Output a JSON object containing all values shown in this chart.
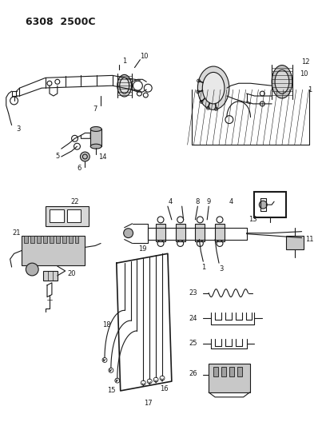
{
  "title": "6308  2500C",
  "bg_color": "#ffffff",
  "line_color": "#1a1a1a",
  "fig_width": 4.08,
  "fig_height": 5.33,
  "dpi": 100
}
